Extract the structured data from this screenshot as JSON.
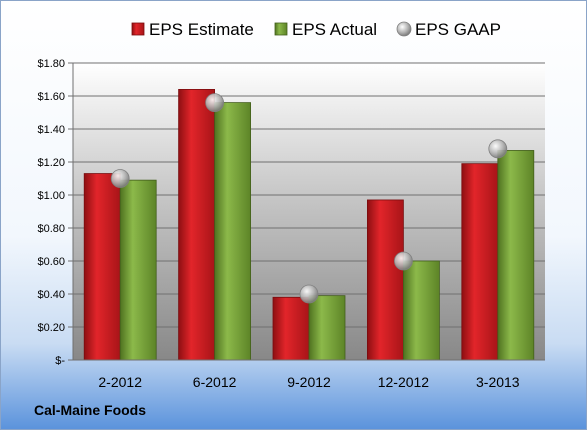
{
  "chart_data": {
    "type": "bar",
    "categories": [
      "2-2012",
      "6-2012",
      "9-2012",
      "12-2012",
      "3-2013"
    ],
    "series": [
      {
        "name": "EPS Estimate",
        "type": "bar",
        "values": [
          1.13,
          1.64,
          0.38,
          0.97,
          1.19
        ]
      },
      {
        "name": "EPS Actual",
        "type": "bar",
        "values": [
          1.09,
          1.56,
          0.39,
          0.6,
          1.27
        ]
      },
      {
        "name": "EPS GAAP",
        "type": "scatter",
        "values": [
          1.1,
          1.56,
          0.4,
          0.6,
          1.28
        ]
      }
    ],
    "yticks": [
      "$-",
      "$0.20",
      "$0.40",
      "$0.60",
      "$0.80",
      "$1.00",
      "$1.20",
      "$1.40",
      "$1.60",
      "$1.80"
    ],
    "ylim": [
      0,
      1.8
    ],
    "grid": true,
    "legend_position": "top",
    "colors": {
      "estimate": "#c0181c",
      "actual": "#6f9a2e",
      "gaap": "#b0b0b0"
    }
  },
  "footer": {
    "company": "Cal-Maine Foods"
  }
}
